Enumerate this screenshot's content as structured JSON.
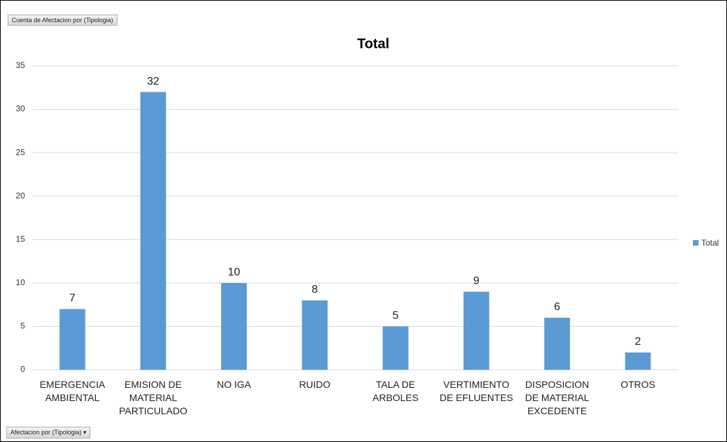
{
  "chart_data": {
    "type": "bar",
    "title": "Total",
    "categories": [
      "EMERGENCIA AMBIENTAL",
      "EMISION DE MATERIAL PARTICULADO",
      "NO IGA",
      "RUIDO",
      "TALA DE ARBOLES",
      "VERTIMIENTO DE EFLUENTES",
      "DISPOSICION DE MATERIAL EXCEDENTE",
      "OTROS"
    ],
    "series": [
      {
        "name": "Total",
        "color": "#5b9bd5",
        "values": [
          7,
          32,
          10,
          8,
          5,
          9,
          6,
          2
        ]
      }
    ],
    "ylim": [
      0,
      35
    ],
    "yticks": [
      0,
      5,
      10,
      15,
      20,
      25,
      30,
      35
    ],
    "grid": true,
    "legend": "right"
  },
  "pivot_buttons": {
    "values_field": "Cuenta de Afectacion por (Tipologia)",
    "axis_field": "Afectacion por (Tipologia)"
  }
}
